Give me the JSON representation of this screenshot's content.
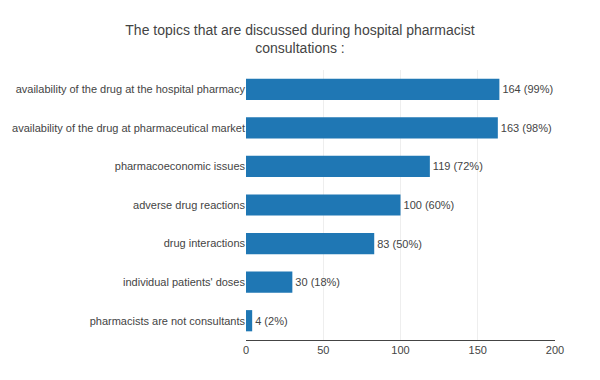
{
  "chart_data": {
    "type": "bar",
    "orientation": "horizontal",
    "title": "The topics that are discussed during hospital pharmacist\nconsultations :",
    "categories": [
      "pharmacists are not consultants",
      "individual patients' doses",
      "drug interactions",
      "adverse drug reactions",
      "pharmacoeconomic issues",
      "availability of the drug at pharmaceutical market",
      "availability of the drug at the hospital pharmacy"
    ],
    "values": [
      4,
      30,
      83,
      100,
      119,
      163,
      164
    ],
    "value_labels": [
      "4 (2%)",
      "30 (18%)",
      "83 (50%)",
      "100 (60%)",
      "119 (72%)",
      "163 (98%)",
      "164 (99%)"
    ],
    "data_labels": true,
    "xlim": [
      0,
      200
    ],
    "xticks": [
      0,
      50,
      100,
      150,
      200
    ],
    "grid": true
  }
}
